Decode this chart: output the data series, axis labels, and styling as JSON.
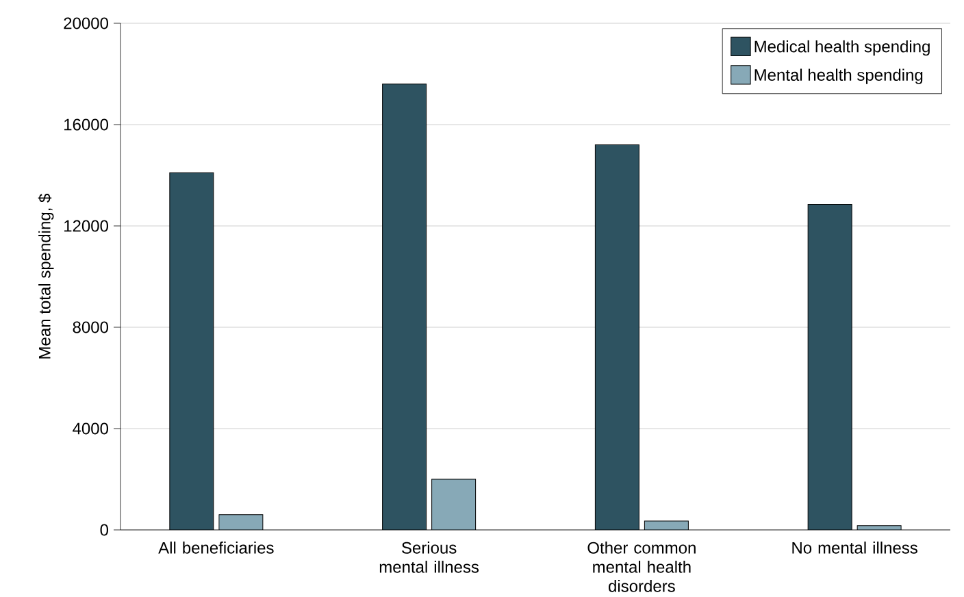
{
  "chart_data": {
    "type": "bar",
    "ylabel": "Mean total spending, $",
    "categories": [
      "All beneficiaries",
      "Serious mental illness",
      "Other common mental health disorders",
      "No mental illness"
    ],
    "series": [
      {
        "name": "Medical health spending",
        "color": "#2e5361",
        "values": [
          14100,
          17600,
          15200,
          12850
        ]
      },
      {
        "name": "Mental health spending",
        "color": "#87a9b7",
        "values": [
          600,
          2000,
          350,
          170
        ]
      }
    ],
    "ylim": [
      0,
      20000
    ],
    "yticks": [
      0,
      4000,
      8000,
      12000,
      16000,
      20000
    ],
    "grid": "y",
    "legend": "top right"
  }
}
